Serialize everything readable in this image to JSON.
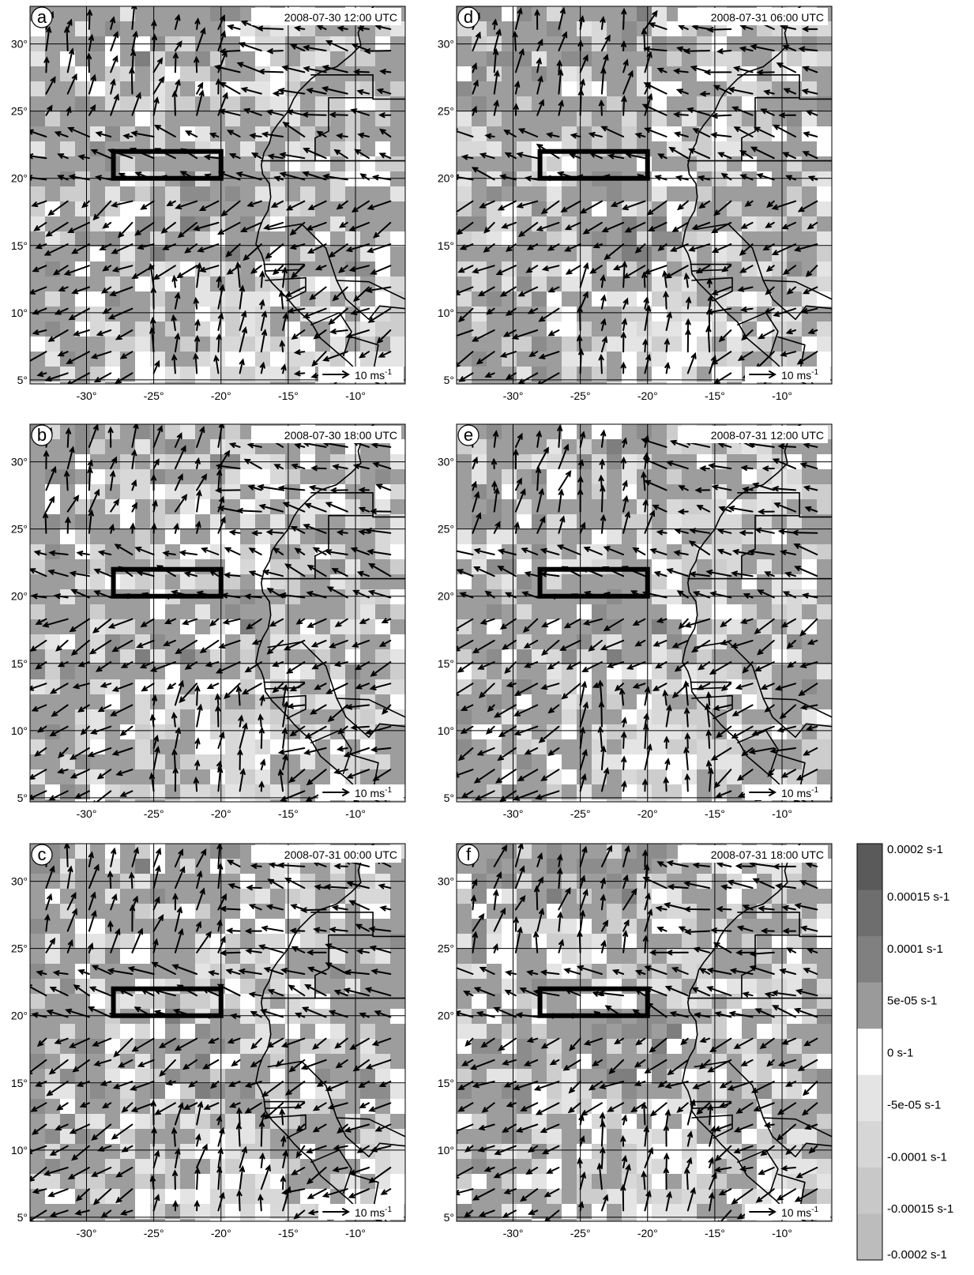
{
  "figure": {
    "lon_ticks": [
      "-30°",
      "-25°",
      "-20°",
      "-15°",
      "-10°"
    ],
    "lat_ticks": [
      "5°",
      "10°",
      "15°",
      "20°",
      "25°",
      "30°"
    ],
    "scale_label": "10 ms",
    "scale_exponent": "-1",
    "panels": [
      {
        "letter": "a",
        "timestamp": "2008-07-30 12:00 UTC",
        "seed": 11
      },
      {
        "letter": "b",
        "timestamp": "2008-07-30 18:00 UTC",
        "seed": 23
      },
      {
        "letter": "c",
        "timestamp": "2008-07-31 00:00 UTC",
        "seed": 37
      },
      {
        "letter": "d",
        "timestamp": "2008-07-31 06:00 UTC",
        "seed": 41
      },
      {
        "letter": "e",
        "timestamp": "2008-07-31 12:00 UTC",
        "seed": 53
      },
      {
        "letter": "f",
        "timestamp": "2008-07-31 18:00 UTC",
        "seed": 67
      }
    ],
    "colorbar": {
      "labels": [
        "0.0002 s-1",
        "0.00015 s-1",
        "0.0001 s-1",
        "5e-05 s-1",
        "0 s-1",
        "-5e-05 s-1",
        "-0.0001 s-1",
        "-0.00015 s-1",
        "-0.0002 s-1"
      ],
      "colors": [
        "#5a5a5a",
        "#6e6e6e",
        "#808080",
        "#9a9a9a",
        "#ffffff",
        "#e4e4e4",
        "#d6d6d6",
        "#c8c8c8",
        "#bcbcbc"
      ]
    },
    "region_box": {
      "lon_min": -28,
      "lon_max": -20,
      "lat_min": 20,
      "lat_max": 22
    }
  }
}
